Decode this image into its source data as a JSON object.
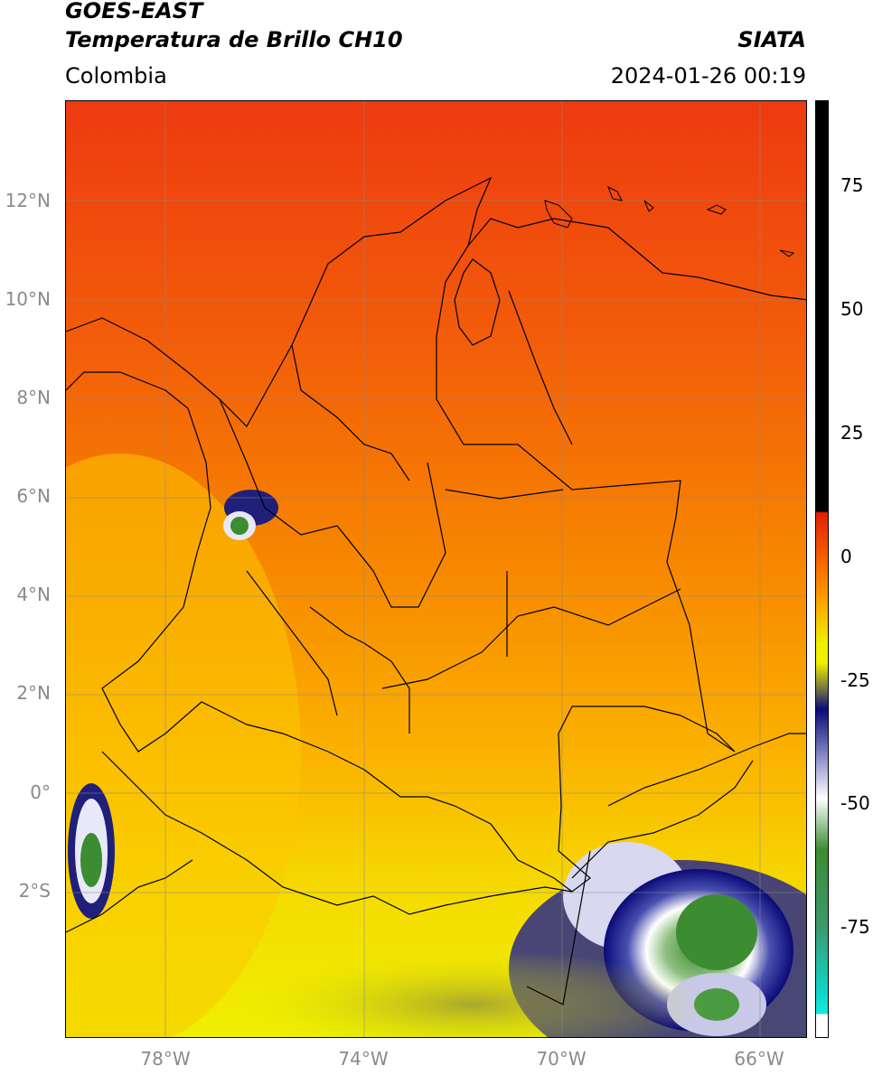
{
  "header": {
    "title_line1": "GOES-EAST",
    "title_line2": "Temperatura de Brillo CH10",
    "region": "Colombia",
    "brand": "SIATA",
    "datetime": "2024-01-26 00:19"
  },
  "map": {
    "lat_labels": [
      "12°N",
      "10°N",
      "8°N",
      "6°N",
      "4°N",
      "2°N",
      "0°",
      "2°S"
    ],
    "lon_labels": [
      "78°W",
      "74°W",
      "70°W",
      "66°W"
    ]
  },
  "colorbar": {
    "tick_labels": [
      "75",
      "50",
      "25",
      "0",
      "-25",
      "-50",
      "-75"
    ],
    "colors": {
      "white": "#ffffff",
      "cyan": "#14d2c8",
      "green": "#3c8c32",
      "navy": "#0a0a78",
      "yellow": "#f0f000",
      "orange": "#ff8c00",
      "red": "#e61e00",
      "black": "#000000"
    }
  }
}
